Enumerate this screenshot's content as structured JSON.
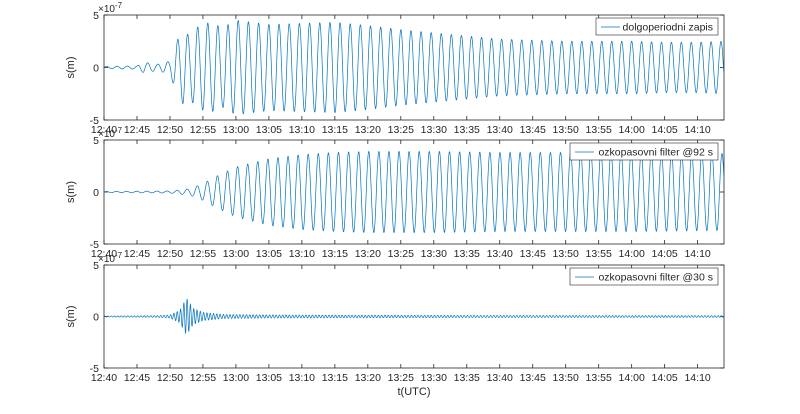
{
  "chart_data": [
    {
      "type": "line",
      "legend": "dolgoperiodni zapis",
      "legend_position": "top-right",
      "ylabel": "s(m)",
      "yexp": "-7",
      "ylim": [
        -5,
        5
      ],
      "yticks": [
        "5",
        "0",
        "-5"
      ],
      "xlim": [
        0,
        94
      ],
      "xticks": [
        "12:40",
        "12:45",
        "12:50",
        "12:55",
        "13:00",
        "13:05",
        "13:10",
        "13:15",
        "13:20",
        "13:25",
        "13:30",
        "13:35",
        "13:40",
        "13:45",
        "13:50",
        "13:55",
        "14:00",
        "14:05",
        "14:10"
      ],
      "series_color": "#0072BD",
      "envelope": [
        [
          0,
          0.1
        ],
        [
          5,
          0.15
        ],
        [
          6,
          0.5
        ],
        [
          8,
          0.3
        ],
        [
          10,
          0.6
        ],
        [
          11,
          2.5
        ],
        [
          12,
          3.5
        ],
        [
          13,
          3.0
        ],
        [
          14,
          3.8
        ],
        [
          16,
          4.3
        ],
        [
          18,
          3.8
        ],
        [
          20,
          4.5
        ],
        [
          25,
          4.1
        ],
        [
          30,
          4.2
        ],
        [
          35,
          4.3
        ],
        [
          40,
          4.0
        ],
        [
          45,
          3.6
        ],
        [
          50,
          3.3
        ],
        [
          55,
          3.0
        ],
        [
          60,
          2.7
        ],
        [
          65,
          2.6
        ],
        [
          70,
          2.5
        ],
        [
          75,
          2.5
        ],
        [
          80,
          2.5
        ],
        [
          85,
          2.4
        ],
        [
          90,
          2.4
        ],
        [
          94,
          2.5
        ]
      ],
      "periods": [
        [
          0,
          1.6
        ],
        [
          10,
          1.5
        ],
        [
          20,
          1.55
        ],
        [
          94,
          1.5
        ]
      ]
    },
    {
      "type": "line",
      "legend": "ozkopasovni filter @92 s",
      "legend_position": "top-right",
      "ylabel": "s(m)",
      "yexp": "-7",
      "ylim": [
        -5,
        5
      ],
      "yticks": [
        "5",
        "0",
        "-5"
      ],
      "xlim": [
        0,
        94
      ],
      "xticks": [
        "12:40",
        "12:45",
        "12:50",
        "12:55",
        "13:00",
        "13:05",
        "13:10",
        "13:15",
        "13:20",
        "13:25",
        "13:30",
        "13:35",
        "13:40",
        "13:45",
        "13:50",
        "13:55",
        "14:00",
        "14:05",
        "14:10"
      ],
      "series_color": "#0072BD",
      "envelope": [
        [
          0,
          0.05
        ],
        [
          10,
          0.1
        ],
        [
          13,
          0.3
        ],
        [
          15,
          0.8
        ],
        [
          17,
          1.5
        ],
        [
          20,
          2.4
        ],
        [
          25,
          3.2
        ],
        [
          30,
          3.6
        ],
        [
          35,
          3.8
        ],
        [
          40,
          3.9
        ],
        [
          50,
          3.9
        ],
        [
          60,
          3.8
        ],
        [
          70,
          3.8
        ],
        [
          80,
          3.8
        ],
        [
          94,
          3.7
        ]
      ],
      "periods": [
        [
          0,
          1.53
        ],
        [
          94,
          1.53
        ]
      ]
    },
    {
      "type": "line",
      "legend": "ozkopasovni filter @30 s",
      "legend_position": "top-right",
      "ylabel": "s(m)",
      "yexp": "-7",
      "xlabel": "t(UTC)",
      "ylim": [
        -5,
        5
      ],
      "yticks": [
        "5",
        "0",
        "-5"
      ],
      "xlim": [
        0,
        94
      ],
      "xticks": [
        "12:40",
        "12:45",
        "12:50",
        "12:55",
        "13:00",
        "13:05",
        "13:10",
        "13:15",
        "13:20",
        "13:25",
        "13:30",
        "13:35",
        "13:40",
        "13:45",
        "13:50",
        "13:55",
        "14:00",
        "14:05",
        "14:10"
      ],
      "series_color": "#0072BD",
      "envelope": [
        [
          0,
          0.05
        ],
        [
          8,
          0.08
        ],
        [
          10,
          0.15
        ],
        [
          11.5,
          0.6
        ],
        [
          12.5,
          1.8
        ],
        [
          13.5,
          0.8
        ],
        [
          15,
          0.4
        ],
        [
          18,
          0.2
        ],
        [
          25,
          0.15
        ],
        [
          40,
          0.12
        ],
        [
          60,
          0.1
        ],
        [
          94,
          0.08
        ]
      ],
      "periods": [
        [
          0,
          0.5
        ],
        [
          94,
          0.5
        ]
      ]
    }
  ]
}
